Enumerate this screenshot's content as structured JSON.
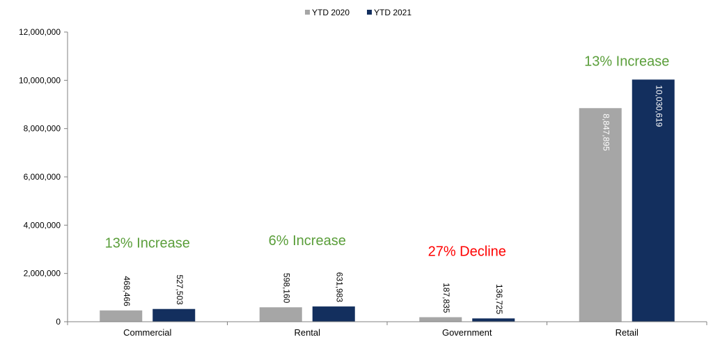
{
  "chart_data": {
    "type": "bar",
    "categories": [
      "Commercial",
      "Rental",
      "Government",
      "Retail"
    ],
    "series": [
      {
        "name": "YTD 2020",
        "color": "#a6a6a6",
        "values": [
          468466,
          598160,
          187835,
          8847895
        ],
        "labels": [
          "468,466",
          "598,160",
          "187,835",
          "8,847,895"
        ]
      },
      {
        "name": "YTD 2021",
        "color": "#132f5e",
        "values": [
          527503,
          631983,
          136725,
          10030619
        ],
        "labels": [
          "527,503",
          "631,983",
          "136,725",
          "10,030,619"
        ]
      }
    ],
    "ylim": [
      0,
      12000000
    ],
    "yticks": [
      0,
      2000000,
      4000000,
      6000000,
      8000000,
      10000000,
      12000000
    ],
    "ytick_labels": [
      "0",
      "2,000,000",
      "4,000,000",
      "6,000,000",
      "8,000,000",
      "10,000,000",
      "12,000,000"
    ],
    "legend_position": "top-center",
    "grid": false,
    "annotations": [
      {
        "category": "Commercial",
        "text": "13% Increase",
        "color": "#5a9e3a"
      },
      {
        "category": "Rental",
        "text": "6% Increase",
        "color": "#5a9e3a"
      },
      {
        "category": "Government",
        "text": "27% Decline",
        "color": "#ff0000"
      },
      {
        "category": "Retail",
        "text": "13% Increase",
        "color": "#5a9e3a"
      }
    ]
  }
}
